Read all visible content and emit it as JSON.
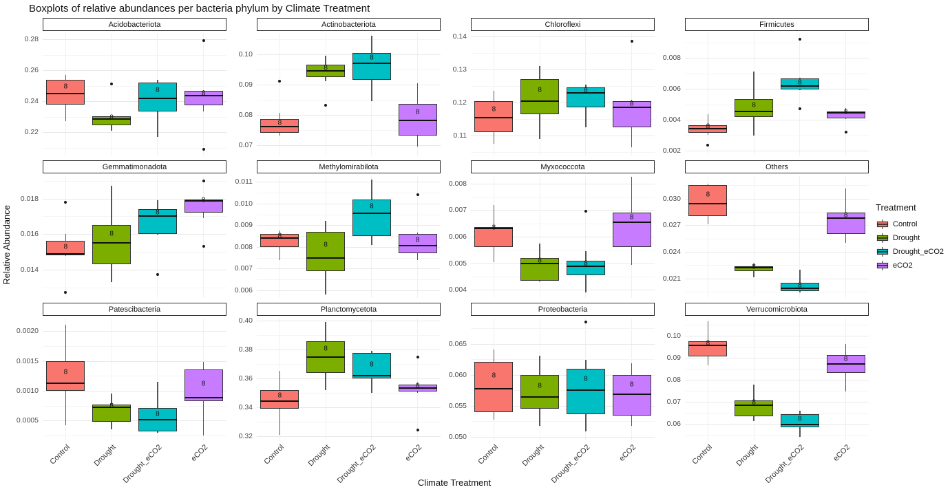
{
  "title": "Boxplots of relative abundances per bacteria phylum by Climate Treatment",
  "axis": {
    "x_title": "Climate Treatment",
    "y_title": "Relative Abundance"
  },
  "legend": {
    "title": "Treatment",
    "items": [
      {
        "label": "Control",
        "color": "#F8766D"
      },
      {
        "label": "Drought",
        "color": "#7CAE00"
      },
      {
        "label": "Drought_eCO2",
        "color": "#00BFC4"
      },
      {
        "label": "eCO2",
        "color": "#C77CFF"
      }
    ]
  },
  "treatments": [
    "Control",
    "Drought",
    "Drought_eCO2",
    "eCO2"
  ],
  "colors": {
    "Control": "#F8766D",
    "Drought": "#7CAE00",
    "Drought_eCO2": "#00BFC4",
    "eCO2": "#C77CFF"
  },
  "chart_data": {
    "type": "boxplot-facets",
    "facet_layout": {
      "cols": 4,
      "rows": 3
    },
    "sample_size_label": "8",
    "facets": [
      {
        "name": "Acidobacteriota",
        "ylim": [
          0.205,
          0.284
        ],
        "yticks": [
          {
            "v": 0.22,
            "t": "0.22"
          },
          {
            "v": 0.24,
            "t": "0.24"
          },
          {
            "v": 0.26,
            "t": "0.26"
          },
          {
            "v": 0.28,
            "t": "0.28"
          }
        ],
        "boxes": [
          {
            "treatment": "Control",
            "lo": 0.227,
            "q1": 0.238,
            "med": 0.245,
            "q3": 0.254,
            "hi": 0.257,
            "outliers": [],
            "n": 8
          },
          {
            "treatment": "Drought",
            "lo": 0.221,
            "q1": 0.2245,
            "med": 0.2285,
            "q3": 0.2302,
            "hi": 0.2305,
            "outliers": [
              0.251
            ],
            "n": 8
          },
          {
            "treatment": "Drought_eCO2",
            "lo": 0.217,
            "q1": 0.2335,
            "med": 0.242,
            "q3": 0.252,
            "hi": 0.254,
            "outliers": [],
            "n": 8
          },
          {
            "treatment": "eCO2",
            "lo": 0.2335,
            "q1": 0.2375,
            "med": 0.2435,
            "q3": 0.2465,
            "hi": 0.247,
            "outliers": [
              0.279,
              0.209
            ],
            "n": 8
          }
        ]
      },
      {
        "name": "Actinobacteriota",
        "ylim": [
          0.0665,
          0.107
        ],
        "yticks": [
          {
            "v": 0.07,
            "t": "0.07"
          },
          {
            "v": 0.08,
            "t": "0.08"
          },
          {
            "v": 0.09,
            "t": "0.09"
          },
          {
            "v": 0.1,
            "t": "0.10"
          }
        ],
        "boxes": [
          {
            "treatment": "Control",
            "lo": 0.073,
            "q1": 0.074,
            "med": 0.076,
            "q3": 0.0785,
            "hi": 0.0805,
            "outliers": [
              0.091
            ],
            "n": 8
          },
          {
            "treatment": "Drought",
            "lo": 0.091,
            "q1": 0.0925,
            "med": 0.0945,
            "q3": 0.0965,
            "hi": 0.0995,
            "outliers": [
              0.083
            ],
            "n": 8
          },
          {
            "treatment": "Drought_eCO2",
            "lo": 0.0845,
            "q1": 0.0915,
            "med": 0.097,
            "q3": 0.1005,
            "hi": 0.106,
            "outliers": [],
            "n": 8
          },
          {
            "treatment": "eCO2",
            "lo": 0.0695,
            "q1": 0.073,
            "med": 0.078,
            "q3": 0.0835,
            "hi": 0.0905,
            "outliers": [],
            "n": 8
          }
        ]
      },
      {
        "name": "Chloroflexi",
        "ylim": [
          0.104,
          0.141
        ],
        "yticks": [
          {
            "v": 0.11,
            "t": "0.11"
          },
          {
            "v": 0.12,
            "t": "0.12"
          },
          {
            "v": 0.13,
            "t": "0.13"
          },
          {
            "v": 0.14,
            "t": "0.14"
          }
        ],
        "boxes": [
          {
            "treatment": "Control",
            "lo": 0.1075,
            "q1": 0.111,
            "med": 0.1155,
            "q3": 0.1205,
            "hi": 0.1235,
            "outliers": [],
            "n": 8
          },
          {
            "treatment": "Drought",
            "lo": 0.109,
            "q1": 0.1165,
            "med": 0.1205,
            "q3": 0.127,
            "hi": 0.131,
            "outliers": [],
            "n": 8
          },
          {
            "treatment": "Drought_eCO2",
            "lo": 0.1125,
            "q1": 0.1185,
            "med": 0.123,
            "q3": 0.1245,
            "hi": 0.1255,
            "outliers": [],
            "n": 8
          },
          {
            "treatment": "eCO2",
            "lo": 0.1065,
            "q1": 0.1125,
            "med": 0.1185,
            "q3": 0.1205,
            "hi": 0.1208,
            "outliers": [
              0.1385
            ],
            "n": 8
          }
        ]
      },
      {
        "name": "Firmicutes",
        "ylim": [
          0.0017,
          0.0096
        ],
        "yticks": [
          {
            "v": 0.002,
            "t": "0.002"
          },
          {
            "v": 0.004,
            "t": "0.004"
          },
          {
            "v": 0.006,
            "t": "0.006"
          },
          {
            "v": 0.008,
            "t": "0.008"
          }
        ],
        "boxes": [
          {
            "treatment": "Control",
            "lo": 0.00305,
            "q1": 0.00315,
            "med": 0.00345,
            "q3": 0.00365,
            "hi": 0.00435,
            "outliers": [
              0.00235
            ],
            "n": 8
          },
          {
            "treatment": "Drought",
            "lo": 0.003,
            "q1": 0.0042,
            "med": 0.00455,
            "q3": 0.00535,
            "hi": 0.0071,
            "outliers": [],
            "n": 8
          },
          {
            "treatment": "Drought_eCO2",
            "lo": 0.0059,
            "q1": 0.00595,
            "med": 0.0062,
            "q3": 0.00665,
            "hi": 0.0067,
            "outliers": [
              0.0092,
              0.0047
            ],
            "n": 8
          },
          {
            "treatment": "eCO2",
            "lo": 0.00405,
            "q1": 0.0041,
            "med": 0.00445,
            "q3": 0.00455,
            "hi": 0.00475,
            "outliers": [
              0.0032
            ],
            "n": 8
          }
        ]
      },
      {
        "name": "Gemmatimonadota",
        "ylim": [
          0.0124,
          0.0193
        ],
        "yticks": [
          {
            "v": 0.014,
            "t": "0.014"
          },
          {
            "v": 0.016,
            "t": "0.016"
          },
          {
            "v": 0.018,
            "t": "0.018"
          }
        ],
        "boxes": [
          {
            "treatment": "Control",
            "lo": 0.01475,
            "q1": 0.0148,
            "med": 0.0149,
            "q3": 0.0156,
            "hi": 0.016,
            "outliers": [
              0.0178,
              0.0127
            ],
            "n": 8
          },
          {
            "treatment": "Drought",
            "lo": 0.0133,
            "q1": 0.0143,
            "med": 0.0155,
            "q3": 0.0165,
            "hi": 0.0187,
            "outliers": [],
            "n": 8
          },
          {
            "treatment": "Drought_eCO2",
            "lo": 0.01595,
            "q1": 0.016,
            "med": 0.017,
            "q3": 0.0174,
            "hi": 0.0179,
            "outliers": [
              0.0137
            ],
            "n": 8
          },
          {
            "treatment": "eCO2",
            "lo": 0.0169,
            "q1": 0.0172,
            "med": 0.01785,
            "q3": 0.01795,
            "hi": 0.018,
            "outliers": [
              0.019,
              0.0153
            ],
            "n": 8
          }
        ]
      },
      {
        "name": "Methylomirabilota",
        "ylim": [
          0.00565,
          0.0113
        ],
        "yticks": [
          {
            "v": 0.006,
            "t": "0.006"
          },
          {
            "v": 0.007,
            "t": "0.007"
          },
          {
            "v": 0.008,
            "t": "0.008"
          },
          {
            "v": 0.009,
            "t": "0.009"
          },
          {
            "v": 0.01,
            "t": "0.010"
          },
          {
            "v": 0.011,
            "t": "0.011"
          }
        ],
        "boxes": [
          {
            "treatment": "Control",
            "lo": 0.0074,
            "q1": 0.008,
            "med": 0.0084,
            "q3": 0.0086,
            "hi": 0.00875,
            "outliers": [],
            "n": 8
          },
          {
            "treatment": "Drought",
            "lo": 0.0058,
            "q1": 0.0069,
            "med": 0.0075,
            "q3": 0.0087,
            "hi": 0.0092,
            "outliers": [],
            "n": 8
          },
          {
            "treatment": "Drought_eCO2",
            "lo": 0.0081,
            "q1": 0.0085,
            "med": 0.00955,
            "q3": 0.0102,
            "hi": 0.0111,
            "outliers": [],
            "n": 8
          },
          {
            "treatment": "eCO2",
            "lo": 0.0074,
            "q1": 0.0077,
            "med": 0.00805,
            "q3": 0.0086,
            "hi": 0.00865,
            "outliers": [
              0.0104
            ],
            "n": 8
          }
        ]
      },
      {
        "name": "Myxococcota",
        "ylim": [
          0.0037,
          0.0083
        ],
        "yticks": [
          {
            "v": 0.004,
            "t": "0.004"
          },
          {
            "v": 0.005,
            "t": "0.005"
          },
          {
            "v": 0.006,
            "t": "0.006"
          },
          {
            "v": 0.007,
            "t": "0.007"
          },
          {
            "v": 0.008,
            "t": "0.008"
          }
        ],
        "boxes": [
          {
            "treatment": "Control",
            "lo": 0.00505,
            "q1": 0.0056,
            "med": 0.0063,
            "q3": 0.00635,
            "hi": 0.0072,
            "outliers": [],
            "n": 8
          },
          {
            "treatment": "Drought",
            "lo": 0.00433,
            "q1": 0.00435,
            "med": 0.005,
            "q3": 0.0052,
            "hi": 0.00575,
            "outliers": [],
            "n": 8
          },
          {
            "treatment": "Drought_eCO2",
            "lo": 0.0039,
            "q1": 0.00455,
            "med": 0.0049,
            "q3": 0.0051,
            "hi": 0.00545,
            "outliers": [
              0.00695
            ],
            "n": 8
          },
          {
            "treatment": "eCO2",
            "lo": 0.00495,
            "q1": 0.0056,
            "med": 0.00655,
            "q3": 0.0069,
            "hi": 0.00825,
            "outliers": [],
            "n": 8
          }
        ]
      },
      {
        "name": "Others",
        "ylim": [
          0.0188,
          0.0326
        ],
        "yticks": [
          {
            "v": 0.021,
            "t": "0.021"
          },
          {
            "v": 0.024,
            "t": "0.024"
          },
          {
            "v": 0.027,
            "t": "0.027"
          },
          {
            "v": 0.03,
            "t": "0.030"
          }
        ],
        "boxes": [
          {
            "treatment": "Control",
            "lo": 0.0271,
            "q1": 0.028,
            "med": 0.0294,
            "q3": 0.0315,
            "hi": 0.0317,
            "outliers": [],
            "n": 8
          },
          {
            "treatment": "Drought",
            "lo": 0.0211,
            "q1": 0.0218,
            "med": 0.0222,
            "q3": 0.0224,
            "hi": 0.0227,
            "outliers": [],
            "n": 8
          },
          {
            "treatment": "Drought_eCO2",
            "lo": 0.0194,
            "q1": 0.0196,
            "med": 0.0199,
            "q3": 0.0205,
            "hi": 0.022,
            "outliers": [],
            "n": 8
          },
          {
            "treatment": "eCO2",
            "lo": 0.025,
            "q1": 0.026,
            "med": 0.0278,
            "q3": 0.0284,
            "hi": 0.0311,
            "outliers": [],
            "n": 8
          }
        ]
      },
      {
        "name": "Patescibacteria",
        "ylim": [
          0.00017,
          0.00222
        ],
        "yticks": [
          {
            "v": 0.0005,
            "t": "0.0005"
          },
          {
            "v": 0.001,
            "t": "0.0010"
          },
          {
            "v": 0.0015,
            "t": "0.0015"
          },
          {
            "v": 0.002,
            "t": "0.0020"
          }
        ],
        "boxes": [
          {
            "treatment": "Control",
            "lo": 0.00042,
            "q1": 0.001,
            "med": 0.00113,
            "q3": 0.0015,
            "hi": 0.0021,
            "outliers": [],
            "n": 8
          },
          {
            "treatment": "Drought",
            "lo": 0.00035,
            "q1": 0.00048,
            "med": 0.00072,
            "q3": 0.00077,
            "hi": 0.00095,
            "outliers": [],
            "n": 8
          },
          {
            "treatment": "Drought_eCO2",
            "lo": 0.0003,
            "q1": 0.00032,
            "med": 0.00051,
            "q3": 0.00071,
            "hi": 0.00115,
            "outliers": [],
            "n": 8
          },
          {
            "treatment": "eCO2",
            "lo": 0.00025,
            "q1": 0.00083,
            "med": 0.00088,
            "q3": 0.00136,
            "hi": 0.00148,
            "outliers": [],
            "n": 8
          }
        ]
      },
      {
        "name": "Planctomycetota",
        "ylim": [
          0.317,
          0.402
        ],
        "yticks": [
          {
            "v": 0.32,
            "t": "0.32"
          },
          {
            "v": 0.34,
            "t": "0.34"
          },
          {
            "v": 0.36,
            "t": "0.36"
          },
          {
            "v": 0.38,
            "t": "0.38"
          },
          {
            "v": 0.4,
            "t": "0.40"
          }
        ],
        "boxes": [
          {
            "treatment": "Control",
            "lo": 0.321,
            "q1": 0.339,
            "med": 0.344,
            "q3": 0.352,
            "hi": 0.365,
            "outliers": [],
            "n": 8
          },
          {
            "treatment": "Drought",
            "lo": 0.352,
            "q1": 0.364,
            "med": 0.375,
            "q3": 0.386,
            "hi": 0.399,
            "outliers": [],
            "n": 8
          },
          {
            "treatment": "Drought_eCO2",
            "lo": 0.35,
            "q1": 0.36,
            "med": 0.362,
            "q3": 0.3775,
            "hi": 0.379,
            "outliers": [],
            "n": 8
          },
          {
            "treatment": "eCO2",
            "lo": 0.35,
            "q1": 0.351,
            "med": 0.3535,
            "q3": 0.3555,
            "hi": 0.357,
            "outliers": [
              0.375,
              0.324
            ],
            "n": 8
          }
        ]
      },
      {
        "name": "Proteobacteria",
        "ylim": [
          0.0494,
          0.0692
        ],
        "yticks": [
          {
            "v": 0.05,
            "t": "0.050"
          },
          {
            "v": 0.055,
            "t": "0.055"
          },
          {
            "v": 0.06,
            "t": "0.060"
          },
          {
            "v": 0.065,
            "t": "0.065"
          }
        ],
        "boxes": [
          {
            "treatment": "Control",
            "lo": 0.0527,
            "q1": 0.054,
            "med": 0.0577,
            "q3": 0.0621,
            "hi": 0.0641,
            "outliers": [],
            "n": 8
          },
          {
            "treatment": "Drought",
            "lo": 0.0517,
            "q1": 0.0545,
            "med": 0.0564,
            "q3": 0.06,
            "hi": 0.0631,
            "outliers": [],
            "n": 8
          },
          {
            "treatment": "Drought_eCO2",
            "lo": 0.0509,
            "q1": 0.0536,
            "med": 0.0575,
            "q3": 0.061,
            "hi": 0.0624,
            "outliers": [
              0.0685
            ],
            "n": 8
          },
          {
            "treatment": "eCO2",
            "lo": 0.0517,
            "q1": 0.0534,
            "med": 0.0568,
            "q3": 0.06,
            "hi": 0.0619,
            "outliers": [],
            "n": 8
          }
        ]
      },
      {
        "name": "Verrucomicrobiota",
        "ylim": [
          0.0525,
          0.108
        ],
        "yticks": [
          {
            "v": 0.06,
            "t": "0.06"
          },
          {
            "v": 0.07,
            "t": "0.07"
          },
          {
            "v": 0.08,
            "t": "0.08"
          },
          {
            "v": 0.09,
            "t": "0.09"
          },
          {
            "v": 0.1,
            "t": "0.10"
          }
        ],
        "boxes": [
          {
            "treatment": "Control",
            "lo": 0.0865,
            "q1": 0.0905,
            "med": 0.0955,
            "q3": 0.0975,
            "hi": 0.1065,
            "outliers": [],
            "n": 8
          },
          {
            "treatment": "Drought",
            "lo": 0.0613,
            "q1": 0.0635,
            "med": 0.0685,
            "q3": 0.0705,
            "hi": 0.0778,
            "outliers": [],
            "n": 8
          },
          {
            "treatment": "Drought_eCO2",
            "lo": 0.054,
            "q1": 0.0585,
            "med": 0.0598,
            "q3": 0.0645,
            "hi": 0.066,
            "outliers": [],
            "n": 8
          },
          {
            "treatment": "eCO2",
            "lo": 0.0745,
            "q1": 0.083,
            "med": 0.0872,
            "q3": 0.0912,
            "hi": 0.0962,
            "outliers": [],
            "n": 8
          }
        ]
      }
    ]
  }
}
